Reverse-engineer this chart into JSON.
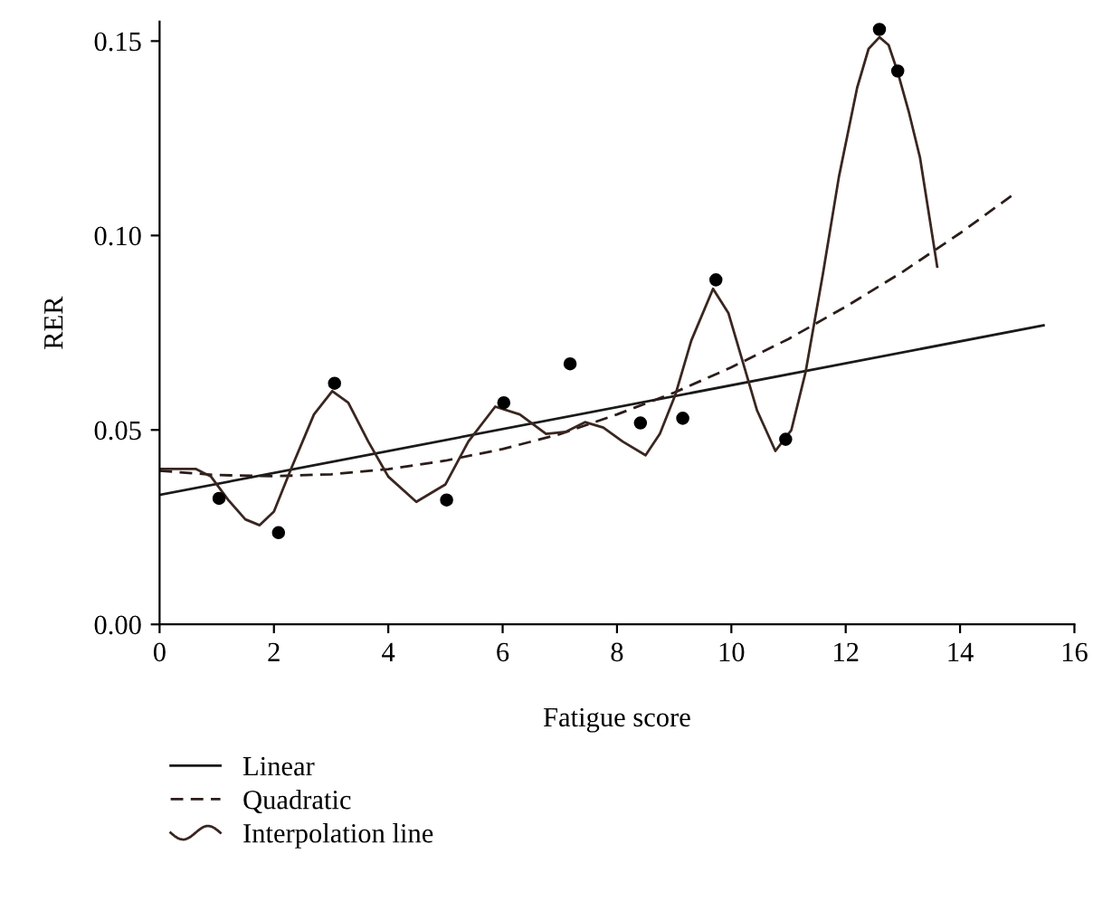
{
  "chart_data": {
    "type": "line",
    "xlabel": "Fatigue score",
    "ylabel": "RER",
    "xlim": [
      0,
      16
    ],
    "xticks": [
      0,
      2,
      4,
      6,
      8,
      10,
      12,
      14,
      16
    ],
    "ylim": [
      0,
      0.155
    ],
    "yticks": [
      {
        "value": 0,
        "label": "0.00"
      },
      {
        "value": 0.05,
        "label": "0.05"
      },
      {
        "value": 0.1,
        "label": "0.10"
      },
      {
        "value": 0.15,
        "label": "0.15"
      }
    ],
    "grid": false,
    "legend": "bottom left",
    "series": [
      {
        "name": "Linear",
        "line_style": "solid",
        "color": "#1a1a1a",
        "x": [
          0,
          15.46
        ],
        "values": [
          0.0333,
          0.0769
        ]
      },
      {
        "name": "Quadratic",
        "line_style": "dashed",
        "color": "#2b1d1a",
        "x": [
          0,
          1,
          2,
          3,
          4,
          5,
          6,
          7,
          8,
          9,
          10,
          11,
          12,
          13,
          14,
          14.9
        ],
        "values": [
          0.0395,
          0.0384,
          0.0381,
          0.0386,
          0.0399,
          0.0421,
          0.0451,
          0.0489,
          0.054,
          0.0596,
          0.0661,
          0.0734,
          0.0817,
          0.0907,
          0.1006,
          0.1102
        ]
      },
      {
        "name": "Interpolation line",
        "line_style": "solid",
        "color": "#3a2620",
        "x": [
          0,
          0.63,
          0.9,
          1.2,
          1.5,
          1.75,
          2.0,
          2.3,
          2.7,
          3.02,
          3.3,
          3.65,
          4.0,
          4.49,
          5.0,
          5.4,
          5.87,
          6.3,
          6.76,
          7.1,
          7.44,
          7.76,
          8.1,
          8.5,
          8.75,
          9.02,
          9.3,
          9.68,
          9.95,
          10.19,
          10.45,
          10.77,
          11.05,
          11.3,
          11.6,
          11.88,
          12.2,
          12.4,
          12.59,
          12.75,
          12.91,
          13.1,
          13.3,
          13.45,
          13.6
        ],
        "values": [
          0.04,
          0.04,
          0.038,
          0.032,
          0.027,
          0.0255,
          0.029,
          0.04,
          0.054,
          0.06,
          0.057,
          0.047,
          0.038,
          0.0315,
          0.036,
          0.047,
          0.056,
          0.054,
          0.049,
          0.0495,
          0.052,
          0.0506,
          0.047,
          0.0435,
          0.049,
          0.059,
          0.073,
          0.0863,
          0.08,
          0.068,
          0.055,
          0.0446,
          0.05,
          0.065,
          0.09,
          0.115,
          0.138,
          0.148,
          0.151,
          0.149,
          0.142,
          0.132,
          0.12,
          0.106,
          0.092
        ]
      },
      {
        "type": "scatter",
        "marker": "circle",
        "color": "#000000",
        "x": [
          1.04,
          2.08,
          3.06,
          5.02,
          6.02,
          7.18,
          8.41,
          9.15,
          9.73,
          10.95,
          12.59,
          12.91
        ],
        "values": [
          0.0324,
          0.0236,
          0.062,
          0.032,
          0.057,
          0.067,
          0.0518,
          0.053,
          0.0886,
          0.0476,
          0.153,
          0.1423
        ]
      }
    ]
  }
}
